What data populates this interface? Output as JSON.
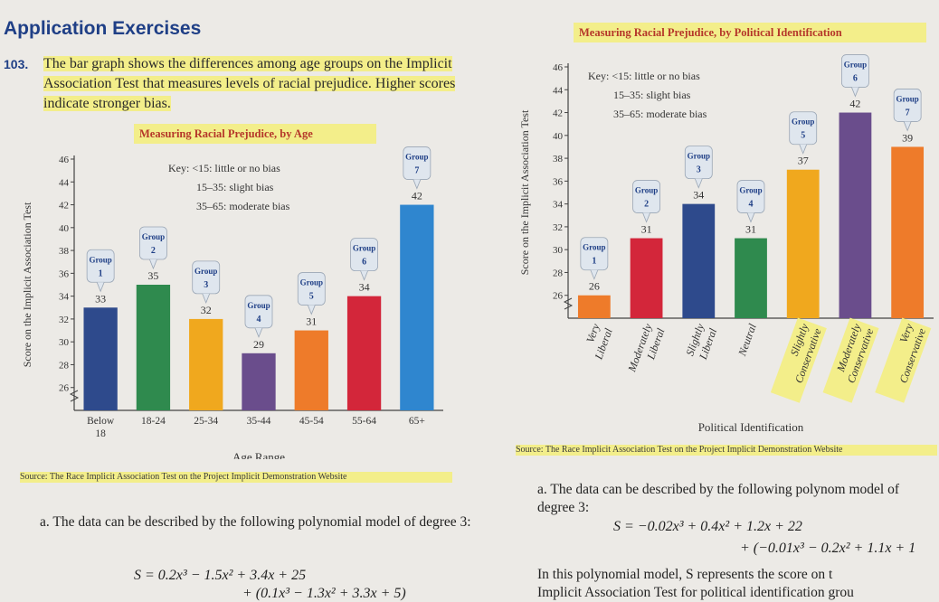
{
  "page": {
    "heading": "Application Exercises",
    "exercise_number": "103.",
    "intro": "The bar graph shows the differences among age groups on the Implicit Association Test that measures levels of racial prejudice. Higher scores indicate stronger bias.",
    "left_source": "Source: The Race Implicit Association Test on the Project Implicit Demonstration Website",
    "right_source": "Source: The Race Implicit Association Test on the Project Implicit Demonstration Website",
    "left_question_a": "a. The data can be described by the following polynomial model of degree 3:",
    "left_formula_1": "S = 0.2x³ − 1.5x² + 3.4x + 25",
    "left_formula_2": "+ (0.1x³ − 1.3x² + 3.3x + 5)",
    "right_question_a": "a. The data can be described by the following polynom model of degree 3:",
    "right_formula_1": "S = −0.02x³ + 0.4x² + 1.2x + 22",
    "right_formula_2": "+ (−0.01x³ − 0.2x² + 1.1x + 1",
    "right_text_b1": "In this polynomial model, S represents the score on t",
    "right_text_b2": "Implicit Association Test for political identification grou"
  },
  "chart_data": [
    {
      "type": "bar",
      "title": "Measuring Racial Prejudice, by Age",
      "xlabel": "Age Range",
      "ylabel": "Score on the Implicit Association Test",
      "categories": [
        "Below 18",
        "18-24",
        "25-34",
        "35-44",
        "45-54",
        "55-64",
        "65+"
      ],
      "values": [
        33,
        35,
        32,
        29,
        31,
        34,
        42
      ],
      "groups": [
        "1",
        "2",
        "3",
        "4",
        "5",
        "6",
        "7"
      ],
      "group_word": "Group",
      "colors": [
        "#2e4a8c",
        "#2f8a4e",
        "#f0a81e",
        "#6a4d8c",
        "#ee7b2a",
        "#d3263a",
        "#2f86cf"
      ],
      "ylim": [
        24,
        46
      ],
      "yticks": [
        26,
        28,
        30,
        32,
        34,
        36,
        38,
        40,
        42,
        44,
        46
      ],
      "key": [
        "Key:  <15: little or no bias",
        "15–35: slight bias",
        "35–65: moderate bias"
      ],
      "grid": false
    },
    {
      "type": "bar",
      "title": "Measuring Racial Prejudice, by Political Identification",
      "xlabel": "Political Identification",
      "ylabel": "Score on the Implicit Association Test",
      "categories": [
        "Very Liberal",
        "Moderately Liberal",
        "Slightly Liberal",
        "Neutral",
        "Slightly Conservative",
        "Moderately Conservative",
        "Very Conservative"
      ],
      "values": [
        26,
        31,
        34,
        31,
        37,
        42,
        39
      ],
      "groups": [
        "1",
        "2",
        "3",
        "4",
        "5",
        "6",
        "7"
      ],
      "group_word": "Group",
      "colors": [
        "#ee7b2a",
        "#d3263a",
        "#2e4a8c",
        "#2f8a4e",
        "#f0a81e",
        "#6a4d8c",
        "#ee7b2a"
      ],
      "ylim": [
        24,
        46
      ],
      "yticks": [
        26,
        28,
        30,
        32,
        34,
        36,
        38,
        40,
        42,
        44,
        46
      ],
      "key": [
        "Key:  <15: little or no bias",
        "15–35: slight bias",
        "35–65: moderate bias"
      ],
      "grid": false
    }
  ]
}
